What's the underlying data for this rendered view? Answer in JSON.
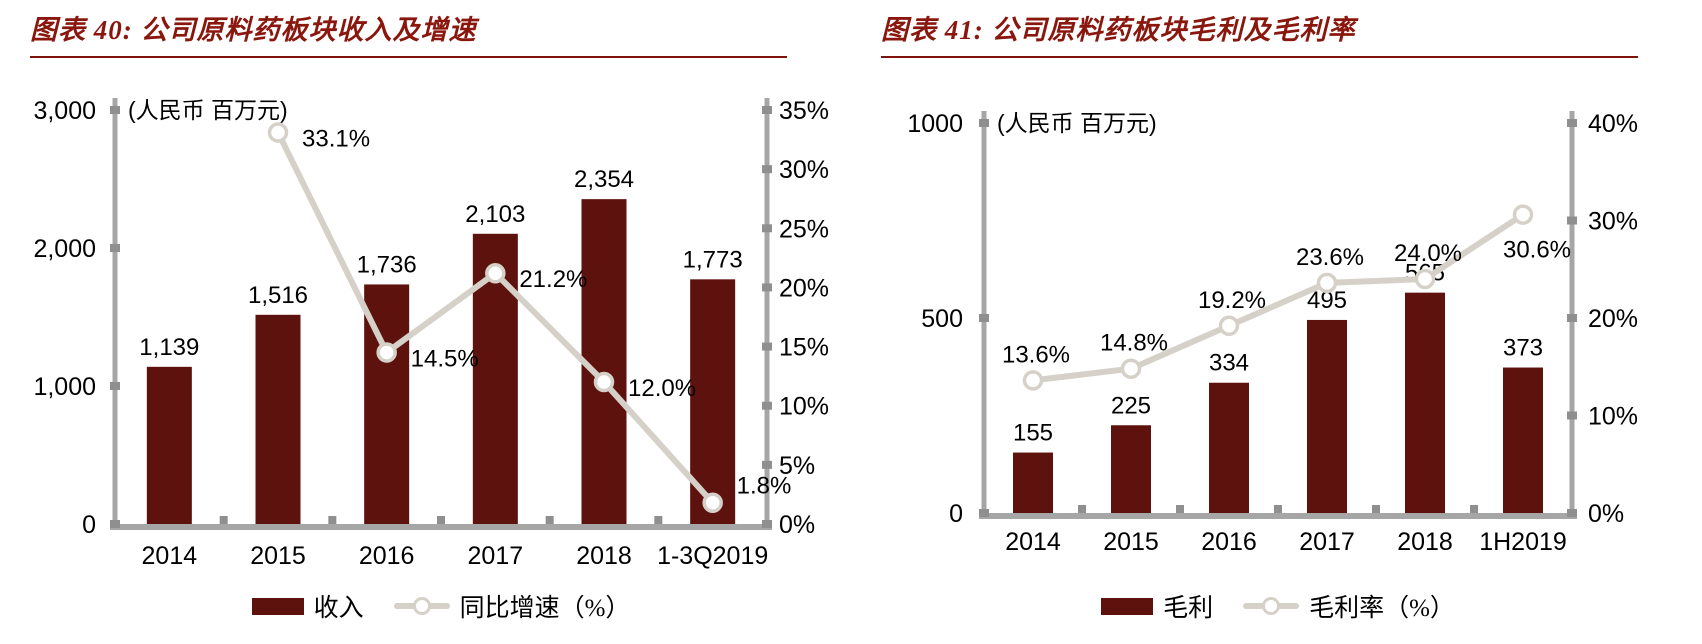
{
  "colors": {
    "bar": "#5e120d",
    "line": "#d5d1c8",
    "marker_fill": "#ffffff",
    "title": "#8a170e",
    "axis": "#a6a6a6",
    "tick": "#8f8f8f",
    "text": "#000000"
  },
  "chart_data": [
    {
      "type": "bar+line",
      "title": "图表 40: 公司原料药板块收入及增速",
      "unit_label": "(人民币 百万元)",
      "categories": [
        "2014",
        "2015",
        "2016",
        "2017",
        "2018",
        "1-3Q2019"
      ],
      "series": [
        {
          "name": "收入",
          "type": "bar",
          "axis": "left",
          "values": [
            1139,
            1516,
            1736,
            2103,
            2354,
            1773
          ],
          "value_labels": [
            "1,139",
            "1,516",
            "1,736",
            "2,103",
            "2,354",
            "1,773"
          ]
        },
        {
          "name": "同比增速（%）",
          "type": "line",
          "axis": "right",
          "values": [
            null,
            33.1,
            14.5,
            21.2,
            12.0,
            1.8
          ],
          "value_labels": [
            "",
            "33.1%",
            "14.5%",
            "21.2%",
            "12.0%",
            "1.8%"
          ],
          "label_pos": [
            "",
            "right",
            "right",
            "right",
            "right",
            "right-above"
          ]
        }
      ],
      "left_axis": {
        "min": 0,
        "max": 3000,
        "tick_labels": [
          "0",
          "1,000",
          "2,000",
          "3,000"
        ]
      },
      "right_axis": {
        "min": 0,
        "max": 35,
        "tick_labels": [
          "0%",
          "5%",
          "10%",
          "15%",
          "20%",
          "25%",
          "30%",
          "35%"
        ]
      },
      "legend": [
        "收入",
        "同比增速（%）"
      ],
      "grid": "off",
      "legend_position": "bottom-center"
    },
    {
      "type": "bar+line",
      "title": "图表 41: 公司原料药板块毛利及毛利率",
      "unit_label": "(人民币 百万元)",
      "categories": [
        "2014",
        "2015",
        "2016",
        "2017",
        "2018",
        "1H2019"
      ],
      "series": [
        {
          "name": "毛利",
          "type": "bar",
          "axis": "left",
          "values": [
            155,
            225,
            334,
            495,
            565,
            373
          ],
          "value_labels": [
            "155",
            "225",
            "334",
            "495",
            "565",
            "373"
          ]
        },
        {
          "name": "毛利率（%）",
          "type": "line",
          "axis": "right",
          "values": [
            13.6,
            14.8,
            19.2,
            23.6,
            24.0,
            30.6
          ],
          "value_labels": [
            "13.6%",
            "14.8%",
            "19.2%",
            "23.6%",
            "24.0%",
            "30.6%"
          ],
          "label_pos": [
            "above",
            "above",
            "above",
            "above",
            "above",
            "below"
          ]
        }
      ],
      "left_axis": {
        "min": 0,
        "max": 1000,
        "tick_labels": [
          "0",
          "500",
          "1000"
        ]
      },
      "right_axis": {
        "min": 0,
        "max": 40,
        "tick_labels": [
          "0%",
          "10%",
          "20%",
          "30%",
          "40%"
        ]
      },
      "legend": [
        "毛利",
        "毛利率（%）"
      ],
      "grid": "off",
      "legend_position": "bottom-center"
    }
  ]
}
